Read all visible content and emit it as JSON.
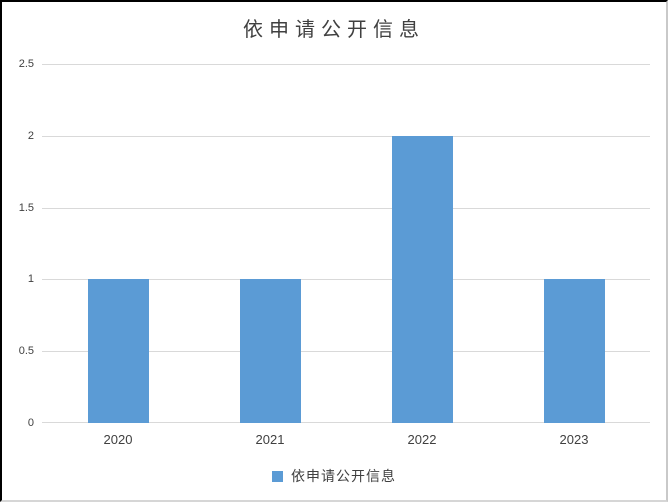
{
  "chart_data": {
    "type": "bar",
    "title": "依申请公开信息",
    "categories": [
      "2020",
      "2021",
      "2022",
      "2023"
    ],
    "series": [
      {
        "name": "依申请公开信息",
        "values": [
          1,
          1,
          2,
          1
        ]
      }
    ],
    "xlabel": "",
    "ylabel": "",
    "ylim": [
      0,
      2.5
    ],
    "ytick_step": 0.5,
    "ytick_labels": [
      "0",
      "0.5",
      "1",
      "1.5",
      "2",
      "2.5"
    ],
    "grid": true,
    "legend_position": "bottom",
    "colors": {
      "bar": "#5B9BD5",
      "gridline": "#D9D9D9",
      "text": "#404040",
      "border_top_left": "#000000",
      "border_bottom_right": "#C9C9C9",
      "background": "#FFFFFF"
    }
  }
}
